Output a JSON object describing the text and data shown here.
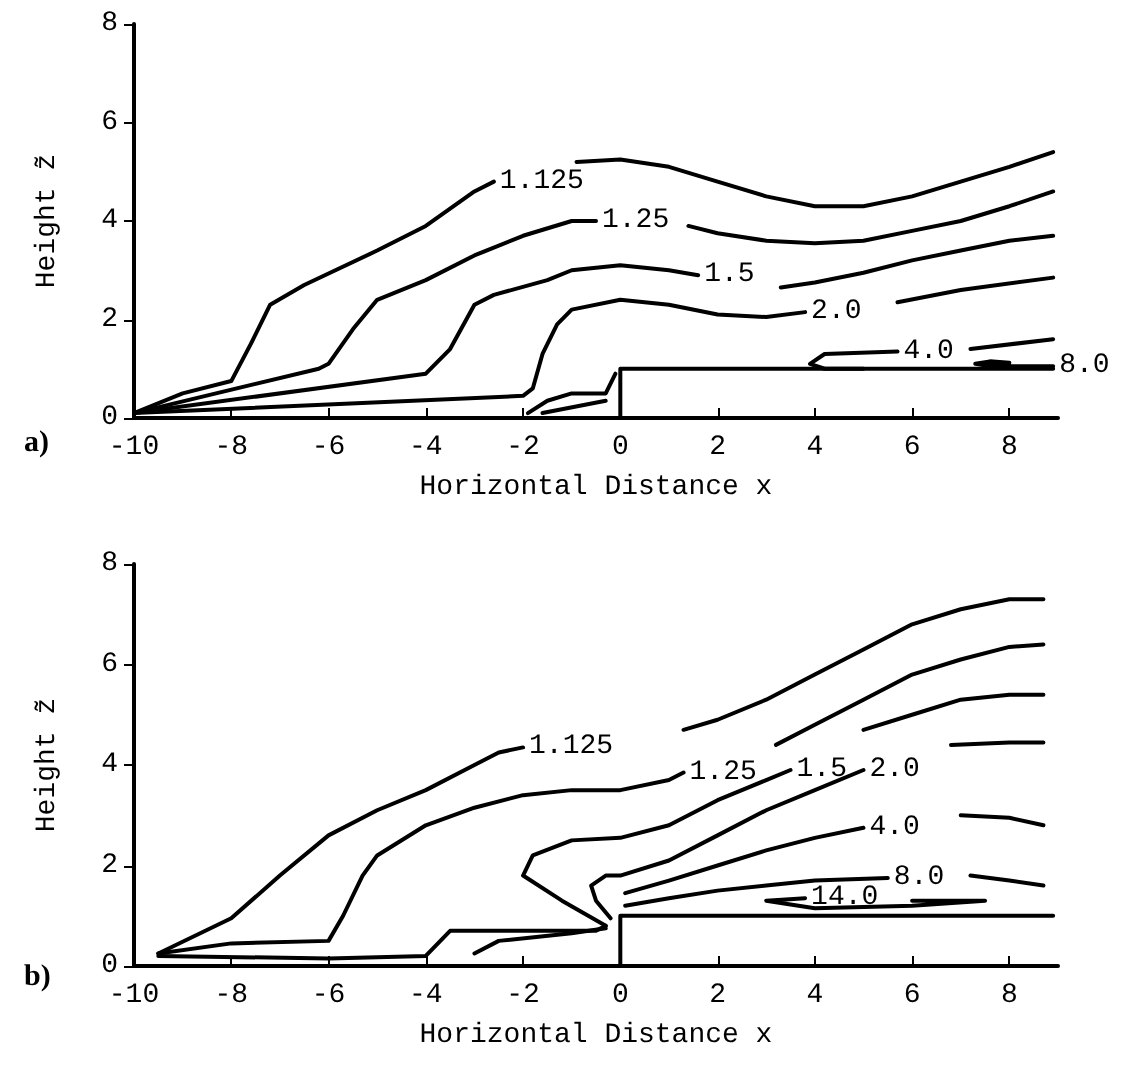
{
  "chart_data": [
    {
      "type": "line",
      "xlabel": "Horizontal Distance x",
      "ylabel": "Height z̃",
      "annotations": [
        "a)"
      ],
      "xlim": [
        -10,
        9
      ],
      "xticks": [
        -10,
        -8,
        -6,
        -4,
        -2,
        0,
        2,
        4,
        6,
        8
      ],
      "ylim": [
        0,
        8
      ],
      "yticks": [
        0,
        2,
        4,
        6,
        8
      ],
      "grid": false,
      "legend": false,
      "marker": "none",
      "line_style": "solid",
      "series": [
        {
          "name": "1.125",
          "color": "#000000",
          "x": [
            -10,
            -9,
            -8,
            -7.6,
            -7.2,
            -6.5,
            -5,
            -4,
            -3,
            -2.6,
            null,
            -0.9,
            0,
            1,
            2,
            3,
            4,
            5,
            6,
            7,
            8,
            8.9
          ],
          "values": [
            0.1,
            0.5,
            0.75,
            1.5,
            2.3,
            2.7,
            3.4,
            3.9,
            4.6,
            4.8,
            null,
            5.2,
            5.25,
            5.1,
            4.8,
            4.5,
            4.3,
            4.3,
            4.5,
            4.8,
            5.1,
            5.4
          ]
        },
        {
          "name": "1.25",
          "color": "#000000",
          "x": [
            -10,
            -6.2,
            -6,
            -5.5,
            -5,
            -4,
            -3,
            -2,
            -1,
            -0.5,
            null,
            1.4,
            2,
            3,
            4,
            5,
            6,
            7,
            8,
            8.9
          ],
          "values": [
            0.1,
            1.0,
            1.1,
            1.8,
            2.4,
            2.8,
            3.3,
            3.7,
            4.0,
            4.0,
            null,
            3.9,
            3.75,
            3.6,
            3.55,
            3.6,
            3.8,
            4.0,
            4.3,
            4.6
          ]
        },
        {
          "name": "1.5",
          "color": "#000000",
          "x": [
            -10,
            -4,
            -3.5,
            -3,
            -2.6,
            -1.5,
            -1,
            0,
            1,
            1.6,
            null,
            3.3,
            4,
            5,
            6,
            7,
            8,
            8.9
          ],
          "values": [
            0.1,
            0.9,
            1.4,
            2.3,
            2.5,
            2.8,
            3.0,
            3.1,
            3.0,
            2.9,
            null,
            2.65,
            2.75,
            2.95,
            3.2,
            3.4,
            3.6,
            3.7
          ]
        },
        {
          "name": "2.0",
          "color": "#000000",
          "x": [
            -10,
            -2,
            -1.8,
            -1.6,
            -1.3,
            -1,
            0,
            1,
            2,
            3,
            3.8,
            null,
            5.7,
            7,
            8.9
          ],
          "values": [
            0.1,
            0.45,
            0.6,
            1.3,
            1.9,
            2.2,
            2.4,
            2.3,
            2.1,
            2.05,
            2.15,
            null,
            2.35,
            2.6,
            2.85
          ]
        },
        {
          "name": "4.0",
          "color": "#000000",
          "x": [
            5,
            4.2,
            3.9,
            4.2,
            5.7,
            null,
            7.2,
            8.9
          ],
          "values": [
            1.0,
            1.0,
            1.1,
            1.3,
            1.35,
            null,
            1.4,
            1.6
          ]
        },
        {
          "name": "8.0",
          "color": "#000000",
          "x": [
            7.3,
            7.6,
            8,
            7.6,
            7.3,
            8,
            8.9
          ],
          "values": [
            1.1,
            1.15,
            1.12,
            1.05,
            1.1,
            1.05,
            1.05
          ]
        },
        {
          "color": "#000000",
          "x": [
            -1.9,
            -1.5,
            -1,
            -0.3,
            -0.1
          ],
          "values": [
            0.1,
            0.35,
            0.5,
            0.5,
            0.9
          ]
        },
        {
          "color": "#000000",
          "x": [
            -1.6,
            -0.3
          ],
          "values": [
            0.1,
            0.35
          ]
        },
        {
          "color": "#000000",
          "x": [
            0,
            0,
            8.9
          ],
          "values": [
            0,
            1,
            1
          ]
        }
      ]
    },
    {
      "type": "line",
      "xlabel": "Horizontal Distance x",
      "ylabel": "Height z̃",
      "annotations": [
        "b)"
      ],
      "xlim": [
        -10,
        9
      ],
      "xticks": [
        -10,
        -8,
        -6,
        -4,
        -2,
        0,
        2,
        4,
        6,
        8
      ],
      "ylim": [
        0,
        8
      ],
      "yticks": [
        0,
        2,
        4,
        6,
        8
      ],
      "grid": false,
      "legend": false,
      "marker": "none",
      "line_style": "solid",
      "series": [
        {
          "name": "1.125",
          "color": "#000000",
          "x": [
            -9.5,
            -8,
            -7,
            -6,
            -5,
            -4,
            -3,
            -2.5,
            -2,
            null,
            1.3,
            2,
            3,
            4,
            5,
            6,
            7,
            8,
            8.7
          ],
          "values": [
            0.25,
            0.95,
            1.8,
            2.6,
            3.1,
            3.5,
            4.0,
            4.25,
            4.35,
            null,
            4.7,
            4.9,
            5.3,
            5.8,
            6.3,
            6.8,
            7.1,
            7.3,
            7.3
          ]
        },
        {
          "name": "1.25",
          "color": "#000000",
          "x": [
            -9.5,
            -8,
            -6,
            -5.7,
            -5.3,
            -5,
            -4,
            -3,
            -2,
            -1,
            0,
            1,
            1.3,
            null,
            3.2,
            4,
            5,
            6,
            7,
            8,
            8.7
          ],
          "values": [
            0.25,
            0.45,
            0.5,
            1.0,
            1.8,
            2.2,
            2.8,
            3.15,
            3.4,
            3.5,
            3.5,
            3.7,
            3.85,
            null,
            4.4,
            4.8,
            5.3,
            5.8,
            6.1,
            6.35,
            6.4
          ]
        },
        {
          "name": "1.5",
          "color": "#000000",
          "x": [
            -0.3,
            -1.2,
            -2,
            -1.8,
            -1,
            0,
            1,
            2,
            3,
            3.5,
            null,
            5.0,
            6,
            7,
            8,
            8.7
          ],
          "values": [
            0.8,
            1.3,
            1.8,
            2.2,
            2.5,
            2.55,
            2.8,
            3.3,
            3.7,
            3.9,
            null,
            4.7,
            5.0,
            5.3,
            5.4,
            5.4
          ]
        },
        {
          "name": "2.0",
          "color": "#000000",
          "x": [
            -0.2,
            -0.5,
            -0.6,
            -0.3,
            0,
            1,
            2,
            3,
            4,
            5,
            null,
            6.8,
            8,
            8.7
          ],
          "values": [
            0.95,
            1.3,
            1.6,
            1.8,
            1.8,
            2.1,
            2.6,
            3.1,
            3.5,
            3.9,
            null,
            4.4,
            4.45,
            4.45
          ]
        },
        {
          "name": "4.0",
          "color": "#000000",
          "x": [
            0.1,
            1,
            2,
            3,
            4,
            5,
            null,
            7.0,
            8,
            8.7
          ],
          "values": [
            1.45,
            1.7,
            2.0,
            2.3,
            2.55,
            2.75,
            null,
            3.0,
            2.95,
            2.8
          ]
        },
        {
          "name": "8.0",
          "color": "#000000",
          "x": [
            0.1,
            1,
            2,
            3,
            4,
            5.5,
            null,
            7.2,
            8,
            8.7
          ],
          "values": [
            1.2,
            1.35,
            1.5,
            1.6,
            1.7,
            1.75,
            null,
            1.8,
            1.7,
            1.6
          ]
        },
        {
          "name": "14.0",
          "color": "#000000",
          "x": [
            3,
            3.8,
            null,
            6,
            7.5,
            6,
            4,
            3
          ],
          "values": [
            1.3,
            1.35,
            null,
            1.3,
            1.3,
            1.2,
            1.15,
            1.3
          ]
        },
        {
          "color": "#000000",
          "x": [
            -9.5,
            -6,
            -4,
            -3.5,
            -2,
            -0.5,
            -0.3
          ],
          "values": [
            0.2,
            0.15,
            0.2,
            0.7,
            0.7,
            0.7,
            0.8
          ]
        },
        {
          "color": "#000000",
          "x": [
            -3,
            -2.5,
            -1,
            -0.3
          ],
          "values": [
            0.25,
            0.5,
            0.65,
            0.75
          ]
        },
        {
          "color": "#000000",
          "x": [
            0,
            0,
            8.9
          ],
          "values": [
            0,
            1,
            1
          ]
        }
      ]
    }
  ]
}
